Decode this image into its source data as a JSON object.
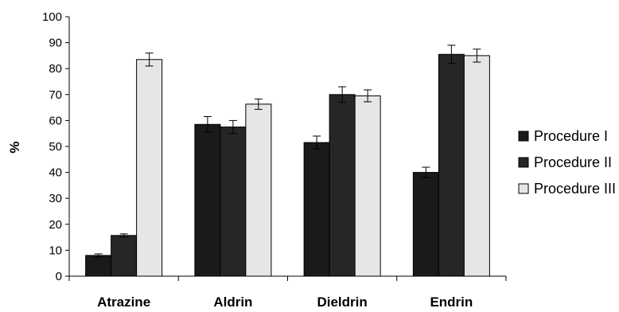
{
  "chart_data": {
    "type": "bar",
    "title": "",
    "xlabel": "",
    "ylabel": "%",
    "ylim": [
      0,
      100
    ],
    "ytick_step": 10,
    "grid": false,
    "legend_position": "right",
    "categories": [
      "Atrazine",
      "Aldrin",
      "Dieldrin",
      "Endrin"
    ],
    "series": [
      {
        "name": "Procedure I",
        "color": "#1a1a1a",
        "values": [
          8,
          58.5,
          51.5,
          40
        ],
        "errors": [
          0.6,
          3,
          2.5,
          2
        ]
      },
      {
        "name": "Procedure II",
        "color": "#262626",
        "values": [
          15.7,
          57.5,
          70,
          85.5
        ],
        "errors": [
          0.6,
          2.5,
          3,
          3.5
        ]
      },
      {
        "name": "Procedure III",
        "color": "#e6e6e6",
        "values": [
          83.5,
          66.3,
          69.5,
          85
        ],
        "errors": [
          2.5,
          2,
          2.3,
          2.5
        ]
      }
    ]
  }
}
